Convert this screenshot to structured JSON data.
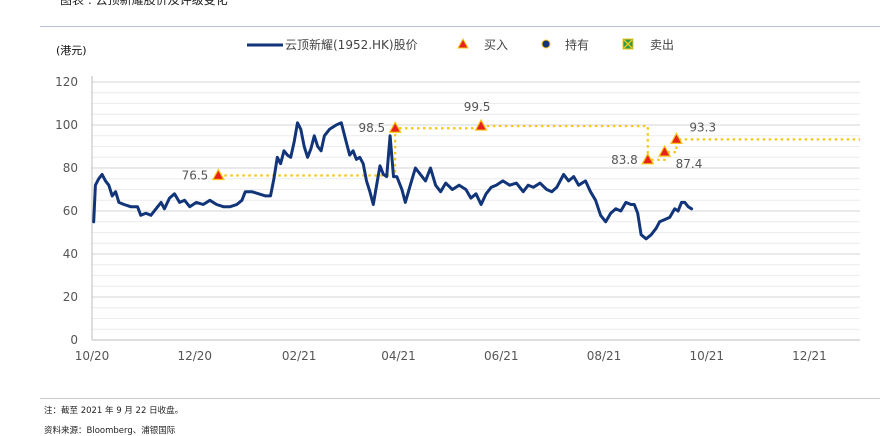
{
  "header_clip": "图表 : 云顶新耀股价及评级变化",
  "chart_data": {
    "type": "line",
    "ylabel": "(港元)",
    "ylim": [
      0,
      120
    ],
    "yticks": [
      0,
      20,
      40,
      60,
      80,
      100,
      120
    ],
    "xlim": [
      "2020-10-01",
      "2021-12-31"
    ],
    "xticks": [
      {
        "date": "2020-10-01",
        "label": "10/20"
      },
      {
        "date": "2020-12-01",
        "label": "12/20"
      },
      {
        "date": "2021-02-01",
        "label": "02/21"
      },
      {
        "date": "2021-04-01",
        "label": "04/21"
      },
      {
        "date": "2021-06-01",
        "label": "06/21"
      },
      {
        "date": "2021-08-01",
        "label": "08/21"
      },
      {
        "date": "2021-10-01",
        "label": "10/21"
      },
      {
        "date": "2021-12-01",
        "label": "12/21"
      }
    ],
    "grid": true,
    "legend_position": "top",
    "price_color": "#12357a",
    "target_color": "#f5c518",
    "buy_color": "#e8221a",
    "series": [
      {
        "name": "云顶新耀(1952.HK)股价",
        "points": [
          [
            "2020-10-02",
            55
          ],
          [
            "2020-10-03",
            72
          ],
          [
            "2020-10-05",
            75
          ],
          [
            "2020-10-07",
            77
          ],
          [
            "2020-10-09",
            74
          ],
          [
            "2020-10-11",
            72
          ],
          [
            "2020-10-13",
            67
          ],
          [
            "2020-10-15",
            69
          ],
          [
            "2020-10-17",
            64
          ],
          [
            "2020-10-20",
            63
          ],
          [
            "2020-10-24",
            62
          ],
          [
            "2020-10-28",
            62
          ],
          [
            "2020-10-30",
            58
          ],
          [
            "2020-11-02",
            59
          ],
          [
            "2020-11-05",
            58
          ],
          [
            "2020-11-08",
            61
          ],
          [
            "2020-11-11",
            64
          ],
          [
            "2020-11-13",
            61
          ],
          [
            "2020-11-16",
            66
          ],
          [
            "2020-11-19",
            68
          ],
          [
            "2020-11-22",
            64
          ],
          [
            "2020-11-25",
            65
          ],
          [
            "2020-11-28",
            62
          ],
          [
            "2020-12-02",
            64
          ],
          [
            "2020-12-06",
            63
          ],
          [
            "2020-12-10",
            65
          ],
          [
            "2020-12-14",
            63
          ],
          [
            "2020-12-18",
            62
          ],
          [
            "2020-12-22",
            62
          ],
          [
            "2020-12-26",
            63
          ],
          [
            "2020-12-29",
            65
          ],
          [
            "2020-12-31",
            69
          ],
          [
            "2021-01-04",
            69
          ],
          [
            "2021-01-08",
            68
          ],
          [
            "2021-01-12",
            67
          ],
          [
            "2021-01-15",
            67
          ],
          [
            "2021-01-17",
            75
          ],
          [
            "2021-01-19",
            85
          ],
          [
            "2021-01-21",
            82
          ],
          [
            "2021-01-23",
            88
          ],
          [
            "2021-01-25",
            86
          ],
          [
            "2021-01-27",
            85
          ],
          [
            "2021-01-29",
            92
          ],
          [
            "2021-01-31",
            101
          ],
          [
            "2021-02-02",
            98
          ],
          [
            "2021-02-04",
            90
          ],
          [
            "2021-02-06",
            85
          ],
          [
            "2021-02-08",
            89
          ],
          [
            "2021-02-10",
            95
          ],
          [
            "2021-02-12",
            90
          ],
          [
            "2021-02-14",
            88
          ],
          [
            "2021-02-16",
            95
          ],
          [
            "2021-02-19",
            98
          ],
          [
            "2021-02-23",
            100
          ],
          [
            "2021-02-26",
            101
          ],
          [
            "2021-03-01",
            92
          ],
          [
            "2021-03-03",
            86
          ],
          [
            "2021-03-05",
            88
          ],
          [
            "2021-03-07",
            84
          ],
          [
            "2021-03-09",
            85
          ],
          [
            "2021-03-11",
            82
          ],
          [
            "2021-03-13",
            74
          ],
          [
            "2021-03-15",
            69
          ],
          [
            "2021-03-17",
            63
          ],
          [
            "2021-03-19",
            72
          ],
          [
            "2021-03-21",
            81
          ],
          [
            "2021-03-23",
            77
          ],
          [
            "2021-03-25",
            76
          ],
          [
            "2021-03-27",
            95
          ],
          [
            "2021-03-29",
            76
          ],
          [
            "2021-03-31",
            76
          ],
          [
            "2021-04-03",
            70
          ],
          [
            "2021-04-05",
            64
          ],
          [
            "2021-04-08",
            72
          ],
          [
            "2021-04-11",
            80
          ],
          [
            "2021-04-14",
            77
          ],
          [
            "2021-04-17",
            74
          ],
          [
            "2021-04-20",
            80
          ],
          [
            "2021-04-23",
            72
          ],
          [
            "2021-04-26",
            69
          ],
          [
            "2021-04-29",
            73
          ],
          [
            "2021-05-03",
            70
          ],
          [
            "2021-05-07",
            72
          ],
          [
            "2021-05-11",
            70
          ],
          [
            "2021-05-14",
            66
          ],
          [
            "2021-05-17",
            68
          ],
          [
            "2021-05-20",
            63
          ],
          [
            "2021-05-23",
            68
          ],
          [
            "2021-05-26",
            71
          ],
          [
            "2021-05-29",
            72
          ],
          [
            "2021-06-02",
            74
          ],
          [
            "2021-06-06",
            72
          ],
          [
            "2021-06-10",
            73
          ],
          [
            "2021-06-14",
            69
          ],
          [
            "2021-06-17",
            72
          ],
          [
            "2021-06-20",
            71
          ],
          [
            "2021-06-24",
            73
          ],
          [
            "2021-06-28",
            70
          ],
          [
            "2021-07-01",
            69
          ],
          [
            "2021-07-04",
            71
          ],
          [
            "2021-07-08",
            77
          ],
          [
            "2021-07-11",
            74
          ],
          [
            "2021-07-14",
            76
          ],
          [
            "2021-07-17",
            72
          ],
          [
            "2021-07-21",
            74
          ],
          [
            "2021-07-24",
            69
          ],
          [
            "2021-07-27",
            65
          ],
          [
            "2021-07-30",
            58
          ],
          [
            "2021-08-02",
            55
          ],
          [
            "2021-08-05",
            59
          ],
          [
            "2021-08-08",
            61
          ],
          [
            "2021-08-11",
            60
          ],
          [
            "2021-08-14",
            64
          ],
          [
            "2021-08-17",
            63
          ],
          [
            "2021-08-19",
            63
          ],
          [
            "2021-08-21",
            59
          ],
          [
            "2021-08-23",
            49
          ],
          [
            "2021-08-26",
            47
          ],
          [
            "2021-08-29",
            49
          ],
          [
            "2021-09-01",
            52
          ],
          [
            "2021-09-03",
            55
          ],
          [
            "2021-09-06",
            56
          ],
          [
            "2021-09-09",
            57
          ],
          [
            "2021-09-12",
            61
          ],
          [
            "2021-09-14",
            60
          ],
          [
            "2021-09-16",
            64
          ],
          [
            "2021-09-18",
            64
          ],
          [
            "2021-09-20",
            62
          ],
          [
            "2021-09-22",
            61
          ]
        ]
      }
    ],
    "legend": [
      {
        "kind": "line",
        "label": "云顶新耀(1952.HK)股价"
      },
      {
        "kind": "buy",
        "label": "买入"
      },
      {
        "kind": "hold",
        "label": "持有"
      },
      {
        "kind": "sell",
        "label": "卖出"
      }
    ],
    "target_steps": [
      {
        "from": "2020-12-15",
        "to": "2021-03-30",
        "value": 76.5
      },
      {
        "from": "2021-03-30",
        "to": "2021-05-20",
        "value": 98.5
      },
      {
        "from": "2021-05-20",
        "to": "2021-08-27",
        "value": 99.5
      },
      {
        "from": "2021-08-27",
        "to": "2021-09-06",
        "value": 83.8
      },
      {
        "from": "2021-09-06",
        "to": "2021-09-13",
        "value": 87.4
      },
      {
        "from": "2021-09-13",
        "to": "2022-01-05",
        "value": 93.3
      }
    ],
    "ratings": [
      {
        "date": "2020-12-15",
        "value": 76.5,
        "rating": "买入",
        "label": "76.5",
        "label_side": "left"
      },
      {
        "date": "2021-03-30",
        "value": 98.5,
        "rating": "买入",
        "label": "98.5",
        "label_side": "left"
      },
      {
        "date": "2021-05-20",
        "value": 99.5,
        "rating": "买入",
        "label": "99.5",
        "label_side": "above"
      },
      {
        "date": "2021-08-27",
        "value": 83.8,
        "rating": "买入",
        "label": "83.8",
        "label_side": "left"
      },
      {
        "date": "2021-09-06",
        "value": 87.4,
        "rating": "买入",
        "label": "87.4",
        "label_side": "below"
      },
      {
        "date": "2021-09-13",
        "value": 93.3,
        "rating": "买入",
        "label": "93.3",
        "label_side": "above-right"
      }
    ]
  },
  "note": "注：截至 2021 年 9 月 22 日收盘。",
  "source": "资料来源：Bloomberg、浦银国际"
}
